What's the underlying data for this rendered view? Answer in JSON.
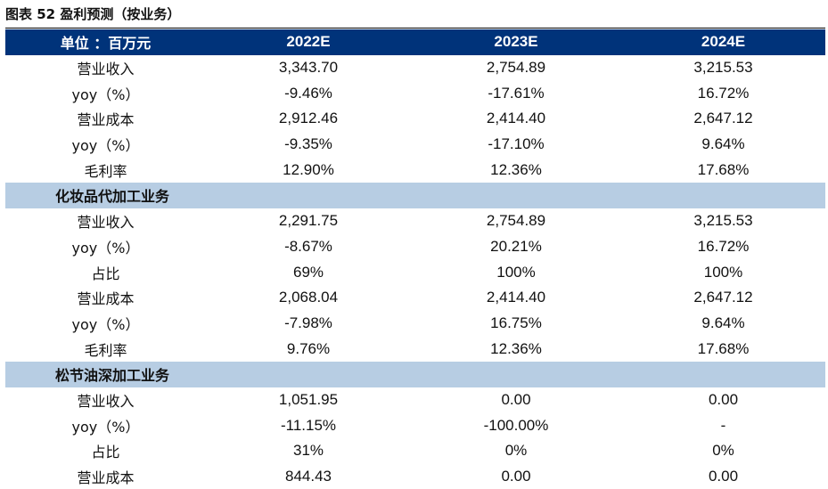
{
  "caption": "图表 52  盈利预测（按业务）",
  "table": {
    "header": [
      "单位 ：百万元",
      "2022E",
      "2023E",
      "2024E"
    ],
    "groups": [
      {
        "title": "",
        "rows": [
          {
            "label": "营业收入",
            "values": [
              "3,343.70",
              "2,754.89",
              "3,215.53"
            ]
          },
          {
            "label": "yoy（%）",
            "values": [
              "-9.46%",
              "-17.61%",
              "16.72%"
            ]
          },
          {
            "label": "营业成本",
            "values": [
              "2,912.46",
              "2,414.40",
              "2,647.12"
            ]
          },
          {
            "label": "yoy（%）",
            "values": [
              "-9.35%",
              "-17.10%",
              "9.64%"
            ]
          },
          {
            "label": "毛利率",
            "values": [
              "12.90%",
              "12.36%",
              "17.68%"
            ]
          }
        ]
      },
      {
        "title": "化妆品代加工业务",
        "rows": [
          {
            "label": "营业收入",
            "values": [
              "2,291.75",
              "2,754.89",
              "3,215.53"
            ]
          },
          {
            "label": "yoy（%）",
            "values": [
              "-8.67%",
              "20.21%",
              "16.72%"
            ]
          },
          {
            "label": "占比",
            "values": [
              "69%",
              "100%",
              "100%"
            ]
          },
          {
            "label": "营业成本",
            "values": [
              "2,068.04",
              "2,414.40",
              "2,647.12"
            ]
          },
          {
            "label": "yoy（%）",
            "values": [
              "-7.98%",
              "16.75%",
              "9.64%"
            ]
          },
          {
            "label": "毛利率",
            "values": [
              "9.76%",
              "12.36%",
              "17.68%"
            ]
          }
        ]
      },
      {
        "title": "松节油深加工业务",
        "rows": [
          {
            "label": "营业收入",
            "values": [
              "1,051.95",
              "0.00",
              "0.00"
            ]
          },
          {
            "label": "yoy（%）",
            "values": [
              "-11.15%",
              "-100.00%",
              "-"
            ]
          },
          {
            "label": "占比",
            "values": [
              "31%",
              "0%",
              "0%"
            ]
          },
          {
            "label": "营业成本",
            "values": [
              "844.43",
              "0.00",
              "0.00"
            ]
          }
        ]
      }
    ]
  },
  "colors": {
    "header_bg": "#00337a",
    "header_text": "#ffffff",
    "section_bg": "#b7cde3"
  }
}
